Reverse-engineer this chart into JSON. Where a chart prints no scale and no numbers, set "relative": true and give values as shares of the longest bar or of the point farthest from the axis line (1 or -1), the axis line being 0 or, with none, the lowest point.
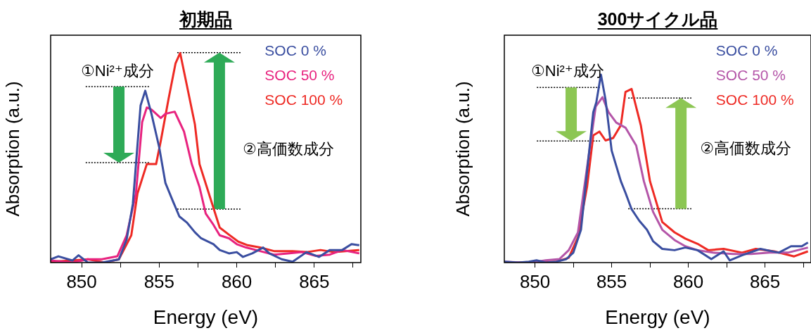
{
  "chart_data": [
    {
      "type": "line",
      "title": "初期品",
      "xlabel": "Energy (eV)",
      "ylabel": "Absorption (a.u.)",
      "relative": true,
      "legend": "top right",
      "marker": "none",
      "line_style": "solid",
      "xlim": [
        848,
        868
      ],
      "xticks": [
        850,
        {
          "value": 852.5,
          "label": null
        },
        855,
        {
          "value": 857.5,
          "label": null
        },
        860,
        {
          "value": 862.5,
          "label": null
        },
        865,
        {
          "value": 867.5,
          "label": null
        }
      ],
      "annotations": [
        "①Ni²⁺成分",
        "②高価数成分"
      ],
      "series": [
        {
          "name": "SOC 0 %",
          "color": "#3a4ea0",
          "x": [
            848,
            848.5,
            849.4,
            849.8,
            850.4,
            851.3,
            852.4,
            852.9,
            853.3,
            853.8,
            854.1,
            854.5,
            855.0,
            855.4,
            855.9,
            856.3,
            856.8,
            857.3,
            857.7,
            858.5,
            858.9,
            859.5,
            860.0,
            860.4,
            861.0,
            861.7,
            862.1,
            862.9,
            863.6,
            864.5,
            865.3,
            866.0,
            866.8,
            867.4,
            867.9
          ],
          "values": [
            0.016,
            0.03,
            0.01,
            0.035,
            0,
            0,
            0.015,
            0.11,
            0.28,
            0.75,
            0.82,
            0.71,
            0.55,
            0.38,
            0.29,
            0.22,
            0.19,
            0.145,
            0.116,
            0.088,
            0.06,
            0.044,
            0.05,
            0.027,
            0.044,
            0.072,
            0.044,
            0.016,
            0.004,
            0.05,
            0.027,
            0.06,
            0.06,
            0.088,
            0.083
          ]
        },
        {
          "name": "SOC 50 %",
          "color": "#e8237f",
          "x": [
            848,
            849.4,
            850.4,
            851.3,
            852.3,
            852.9,
            853.5,
            853.9,
            854.2,
            854.5,
            855.1,
            855.4,
            856.0,
            856.6,
            857.1,
            857.6,
            858.0,
            858.5,
            858.9,
            859.5,
            860.0,
            860.6,
            861.5,
            862.4,
            863.3,
            864.2,
            865.1,
            866.0,
            866.8,
            867.9
          ],
          "values": [
            0.01,
            0,
            0.016,
            0.016,
            0.03,
            0.13,
            0.33,
            0.67,
            0.74,
            0.73,
            0.69,
            0.71,
            0.72,
            0.625,
            0.47,
            0.36,
            0.234,
            0.18,
            0.13,
            0.116,
            0.088,
            0.072,
            0.055,
            0.038,
            0.044,
            0.05,
            0.032,
            0.038,
            0.06,
            0.044
          ]
        },
        {
          "name": "SOC 100 %",
          "color": "#ee2a24",
          "x": [
            848,
            849.4,
            850.4,
            851.5,
            852.4,
            853.2,
            853.6,
            854.2,
            854.8,
            855.1,
            855.6,
            856.05,
            856.35,
            856.8,
            857.3,
            857.6,
            858.2,
            858.9,
            859.5,
            860.1,
            860.7,
            861.5,
            862.4,
            863.6,
            864.5,
            865.4,
            866.3,
            867.9
          ],
          "values": [
            0.004,
            0.01,
            0.016,
            0,
            0.016,
            0.13,
            0.33,
            0.47,
            0.47,
            0.58,
            0.78,
            0.95,
            1,
            0.84,
            0.66,
            0.47,
            0.33,
            0.167,
            0.133,
            0.1,
            0.083,
            0.072,
            0.055,
            0.055,
            0.05,
            0.06,
            0.05,
            0.06
          ]
        }
      ]
    },
    {
      "type": "line",
      "title": "300サイクル品",
      "xlabel": "Energy (eV)",
      "ylabel": "Absorption (a.u.)",
      "relative": true,
      "legend": "top right",
      "marker": "none",
      "line_style": "solid",
      "xlim": [
        848,
        868
      ],
      "xticks": [
        850,
        {
          "value": 852.5,
          "label": null
        },
        855,
        {
          "value": 857.5,
          "label": null
        },
        860,
        {
          "value": 862.5,
          "label": null
        },
        865,
        {
          "value": 867.5,
          "label": null
        }
      ],
      "annotations": [
        "①Ni²⁺成分",
        "②高価数成分"
      ],
      "series": [
        {
          "name": "SOC 0 %",
          "color": "#3a4ea0",
          "x": [
            848,
            848.9,
            849.6,
            850.1,
            850.7,
            851.4,
            852.05,
            852.5,
            853.0,
            853.4,
            853.8,
            854.0,
            854.3,
            854.6,
            855.0,
            855.6,
            855.9,
            856.3,
            856.8,
            857.3,
            857.7,
            858.3,
            859.1,
            859.8,
            860.6,
            861.5,
            862.3,
            862.7,
            863.5,
            864.7,
            865.9,
            866.7,
            867.4,
            867.8
          ],
          "values": [
            0.005,
            0,
            0.005,
            0.012,
            0,
            0.005,
            0.019,
            0.053,
            0.175,
            0.487,
            0.8,
            0.853,
            1,
            0.867,
            0.596,
            0.433,
            0.372,
            0.284,
            0.223,
            0.175,
            0.114,
            0.073,
            0.066,
            0.08,
            0.066,
            0.019,
            0.06,
            0.012,
            0.039,
            0.073,
            0.053,
            0.087,
            0.087,
            0.107
          ]
        },
        {
          "name": "SOC 50 %",
          "color": "#b455a8",
          "x": [
            848,
            849.2,
            850.1,
            850.7,
            851.6,
            852.2,
            852.8,
            853.4,
            853.96,
            854.4,
            854.8,
            855.3,
            855.9,
            856.6,
            857.1,
            857.7,
            858.3,
            859.1,
            859.8,
            860.6,
            861.6,
            862.9,
            864.1,
            865.3,
            866.5,
            867.8
          ],
          "values": [
            0.005,
            0,
            0.005,
            0.012,
            0.019,
            0.066,
            0.16,
            0.51,
            0.83,
            0.88,
            0.8,
            0.745,
            0.718,
            0.623,
            0.433,
            0.27,
            0.175,
            0.12,
            0.087,
            0.066,
            0.053,
            0.046,
            0.046,
            0.053,
            0.053,
            0.08
          ]
        },
        {
          "name": "SOC 100 %",
          "color": "#ee2a24",
          "x": [
            848,
            851.4,
            852.2,
            852.8,
            853.4,
            853.8,
            854.2,
            854.6,
            855.1,
            855.6,
            855.9,
            856.3,
            856.9,
            857.5,
            858.3,
            859.1,
            859.8,
            860.6,
            861.3,
            862.3,
            863.5,
            864.4,
            865.6,
            866.9,
            867.8
          ],
          "values": [
            0,
            0.005,
            0.026,
            0.134,
            0.406,
            0.677,
            0.697,
            0.65,
            0.663,
            0.731,
            0.908,
            0.924,
            0.731,
            0.433,
            0.216,
            0.161,
            0.128,
            0.1,
            0.066,
            0.073,
            0.053,
            0.073,
            0.06,
            0.033,
            0.06
          ]
        }
      ]
    }
  ]
}
